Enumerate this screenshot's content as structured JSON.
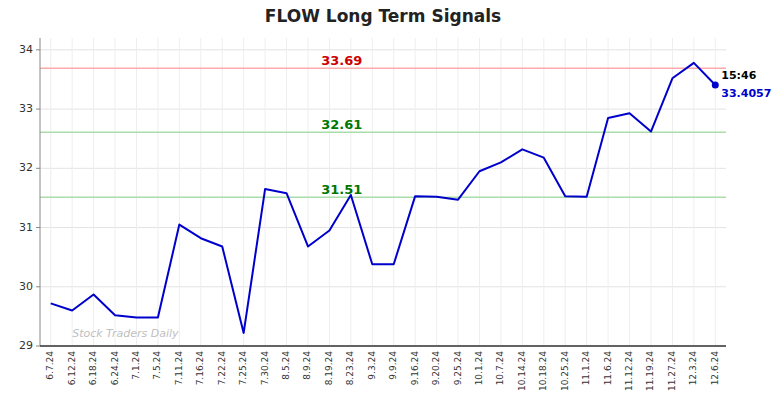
{
  "chart_data": {
    "type": "line",
    "title": "FLOW Long Term Signals",
    "categories": [
      "6.7.24",
      "6.12.24",
      "6.18.24",
      "6.24.24",
      "7.1.24",
      "7.5.24",
      "7.11.24",
      "7.16.24",
      "7.22.24",
      "7.25.24",
      "7.30.24",
      "8.5.24",
      "8.9.24",
      "8.19.24",
      "8.23.24",
      "9.3.24",
      "9.9.24",
      "9.16.24",
      "9.20.24",
      "9.25.24",
      "10.1.24",
      "10.7.24",
      "10.14.24",
      "10.18.24",
      "10.25.24",
      "11.1.24",
      "11.6.24",
      "11.12.24",
      "11.19.24",
      "11.27.24",
      "12.3.24",
      "12.6.24"
    ],
    "values": [
      29.72,
      29.6,
      29.87,
      29.52,
      29.48,
      29.48,
      31.05,
      30.82,
      30.68,
      29.22,
      31.65,
      31.58,
      30.68,
      30.95,
      31.55,
      30.38,
      30.38,
      31.53,
      31.52,
      31.47,
      31.95,
      32.1,
      32.32,
      32.18,
      31.53,
      31.52,
      32.85,
      32.93,
      32.62,
      33.52,
      33.78,
      33.4057
    ],
    "color": "#0000cc",
    "ylim": [
      29.0,
      34.2
    ],
    "yticks": [
      29,
      30,
      31,
      32,
      33,
      34
    ],
    "grid": true,
    "reference_lines": [
      {
        "value": 33.69,
        "label": "33.69",
        "color": "#ffaaaa",
        "label_color": "#cc0000"
      },
      {
        "value": 32.61,
        "label": "32.61",
        "color": "#aaddaa",
        "label_color": "#007700"
      },
      {
        "value": 31.51,
        "label": "31.51",
        "color": "#aaddaa",
        "label_color": "#007700"
      }
    ],
    "annotations": [
      {
        "text": "15:46",
        "color": "#000000"
      },
      {
        "text": "33.4057",
        "color": "#0000cc"
      }
    ],
    "watermark": "Stock Traders Daily"
  }
}
